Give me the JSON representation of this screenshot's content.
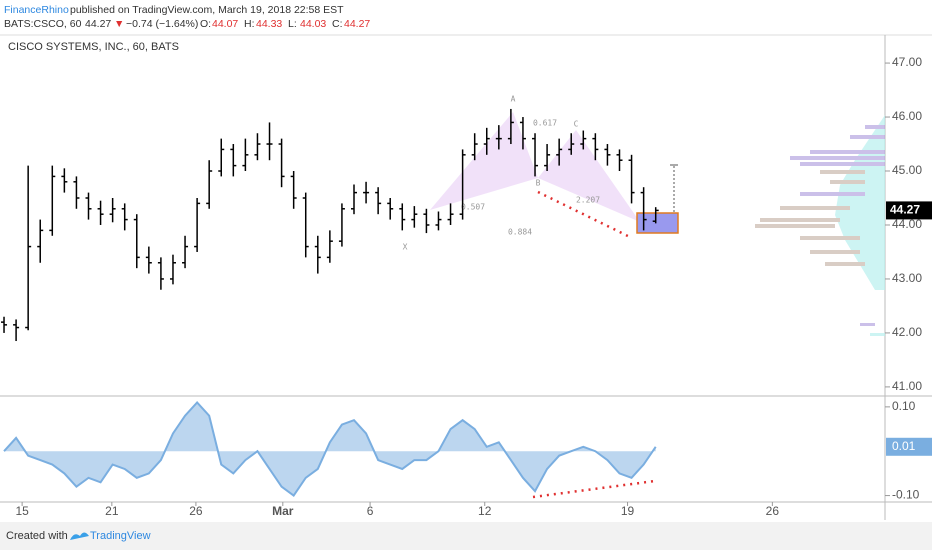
{
  "header": {
    "author": "FinanceRhino",
    "published": "published on TradingView.com, March 19, 2018 22:58 EST",
    "symbol": "BATS:CSCO, 60",
    "last": "44.27",
    "arrow": "▼",
    "change": "−0.74 (−1.64%)",
    "ohlc": [
      {
        "label": "O:",
        "value": "44.07"
      },
      {
        "label": "H:",
        "value": "44.33"
      },
      {
        "label": "L:",
        "value": "44.03"
      },
      {
        "label": "C:",
        "value": "44.27"
      }
    ]
  },
  "footer": {
    "text": "Created with",
    "brand": "TradingView"
  },
  "chart_data": {
    "type": "ohlc",
    "title": "CISCO SYSTEMS, INC., 60, BATS",
    "color": "#000000",
    "xlim": [
      0,
      220
    ],
    "xticks": [
      {
        "value": 5.5,
        "label": "15"
      },
      {
        "value": 27.8,
        "label": "21"
      },
      {
        "value": 48.7,
        "label": "26"
      },
      {
        "value": 70.3,
        "label": "Mar"
      },
      {
        "value": 92,
        "label": "6"
      },
      {
        "value": 120.5,
        "label": "12"
      },
      {
        "value": 156,
        "label": "19"
      },
      {
        "value": 192,
        "label": "26"
      }
    ],
    "ylim": [
      40.85,
      47.52
    ],
    "yticks": [
      {
        "value": 41,
        "label": "41.00"
      },
      {
        "value": 42,
        "label": "42.00"
      },
      {
        "value": 43,
        "label": "43.00"
      },
      {
        "value": 44,
        "label": "44.00"
      },
      {
        "value": 45,
        "label": "45.00"
      },
      {
        "value": 46,
        "label": "46.00"
      },
      {
        "value": 47,
        "label": "47.00"
      }
    ],
    "x": [
      1,
      4,
      7,
      10,
      13,
      16,
      19,
      22,
      25,
      28,
      31,
      34,
      37,
      40,
      43,
      46,
      49,
      52,
      55,
      58,
      61,
      64,
      67,
      70,
      73,
      76,
      79,
      82,
      85,
      88,
      91,
      94,
      97,
      100,
      103,
      106,
      109,
      112,
      115,
      118,
      121,
      124,
      127,
      130,
      133,
      136,
      139,
      142,
      145,
      148,
      151,
      154,
      157,
      160,
      163
    ],
    "open": [
      42.2,
      42.15,
      42.1,
      43.6,
      43.9,
      44.9,
      44.8,
      44.5,
      44.3,
      44.2,
      44.3,
      44.1,
      43.4,
      43.3,
      43.0,
      43.3,
      43.6,
      44.4,
      45.0,
      45.4,
      45.1,
      45.3,
      45.5,
      45.5,
      44.9,
      44.5,
      43.6,
      43.4,
      43.7,
      44.3,
      44.6,
      44.6,
      44.4,
      44.3,
      44.1,
      44.2,
      44.0,
      44.1,
      44.2,
      45.3,
      45.5,
      45.6,
      45.6,
      45.9,
      45.6,
      45.1,
      45.3,
      45.4,
      45.5,
      45.6,
      45.4,
      45.3,
      45.2,
      44.6,
      44.07
    ],
    "high": [
      42.3,
      42.25,
      45.1,
      44.1,
      45.1,
      45.05,
      44.9,
      44.6,
      44.45,
      44.5,
      44.4,
      44.2,
      43.6,
      43.4,
      43.45,
      43.8,
      44.5,
      45.2,
      45.6,
      45.5,
      45.6,
      45.7,
      45.9,
      45.6,
      45.0,
      44.6,
      43.8,
      43.9,
      44.4,
      44.75,
      44.8,
      44.7,
      44.5,
      44.4,
      44.35,
      44.3,
      44.25,
      44.4,
      45.4,
      45.7,
      45.8,
      45.85,
      46.15,
      46.0,
      45.7,
      45.5,
      45.6,
      45.7,
      45.75,
      45.7,
      45.5,
      45.4,
      45.3,
      44.7,
      44.33
    ],
    "low": [
      42.0,
      41.85,
      42.05,
      43.3,
      43.8,
      44.6,
      44.3,
      44.1,
      44.0,
      44.05,
      43.9,
      43.2,
      43.1,
      42.8,
      42.9,
      43.2,
      43.5,
      44.3,
      44.9,
      44.9,
      45.0,
      45.2,
      45.2,
      44.7,
      44.3,
      43.4,
      43.1,
      43.3,
      43.6,
      44.2,
      44.4,
      44.2,
      44.1,
      43.9,
      43.95,
      43.85,
      43.9,
      44.0,
      44.1,
      45.2,
      45.3,
      45.4,
      45.5,
      45.4,
      44.9,
      45.0,
      45.1,
      45.3,
      45.4,
      45.2,
      45.1,
      45.0,
      44.4,
      43.9,
      44.03
    ],
    "close": [
      42.15,
      42.1,
      43.6,
      43.9,
      44.9,
      44.8,
      44.5,
      44.3,
      44.2,
      44.3,
      44.1,
      43.4,
      43.3,
      43.0,
      43.3,
      43.6,
      44.4,
      45.0,
      45.4,
      45.1,
      45.3,
      45.5,
      45.5,
      44.9,
      44.5,
      43.6,
      43.4,
      43.7,
      44.3,
      44.6,
      44.6,
      44.4,
      44.3,
      44.1,
      44.2,
      44.0,
      44.1,
      44.2,
      45.3,
      45.5,
      45.6,
      45.6,
      45.9,
      45.6,
      45.1,
      45.3,
      45.4,
      45.5,
      45.6,
      45.4,
      45.3,
      45.2,
      44.6,
      44.1,
      44.27
    ],
    "pattern_labels": [
      "X",
      "A",
      "B",
      "C",
      "0.617",
      "0.507",
      "0.884",
      "2.207"
    ],
    "indicator": {
      "type": "area",
      "color": "#7aaee0",
      "ylim": [
        -0.11,
        0.12
      ],
      "yticks": [
        {
          "value": 0.1,
          "label": "0.10"
        },
        {
          "value": -0.1,
          "label": "-0.10"
        }
      ],
      "values": [
        0.0,
        0.03,
        -0.01,
        -0.02,
        -0.03,
        -0.05,
        -0.08,
        -0.06,
        -0.07,
        -0.03,
        -0.04,
        -0.06,
        -0.05,
        -0.02,
        0.04,
        0.08,
        0.11,
        0.08,
        -0.03,
        -0.05,
        -0.02,
        0.0,
        -0.04,
        -0.08,
        -0.1,
        -0.06,
        -0.04,
        0.02,
        0.06,
        0.07,
        0.04,
        -0.02,
        -0.03,
        -0.04,
        -0.02,
        -0.02,
        0.0,
        0.05,
        0.07,
        0.05,
        0.01,
        0.02,
        -0.02,
        -0.06,
        -0.09,
        -0.04,
        -0.01,
        0.0,
        0.01,
        0.0,
        -0.02,
        -0.05,
        -0.06,
        -0.03,
        0.01
      ]
    }
  }
}
